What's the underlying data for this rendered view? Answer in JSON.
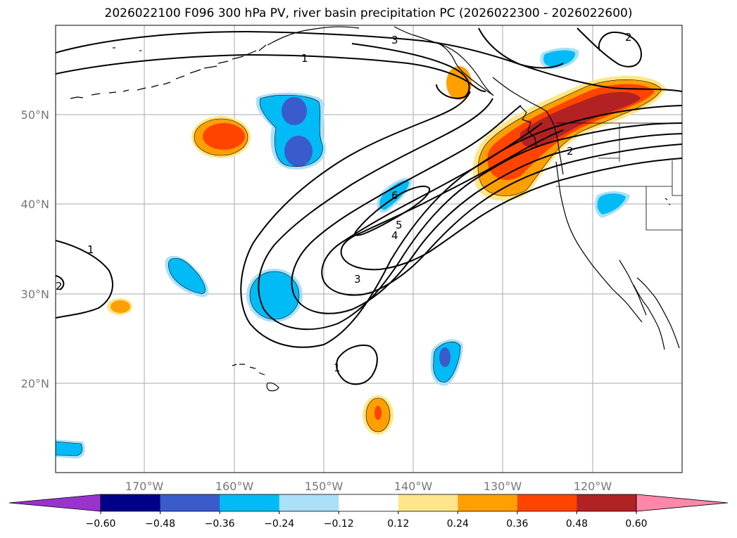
{
  "title": "2026022100 F096 300 hPa PV, river basin precipitation PC (2026022300 - 2026022600)",
  "map": {
    "lat_labels": [
      "50°N",
      "40°N",
      "30°N",
      "20°N"
    ],
    "lon_labels": [
      "170°W",
      "160°W",
      "150°W",
      "140°W",
      "130°W",
      "120°W"
    ],
    "contour_labels": [
      "3",
      "1",
      "2",
      "6",
      "5",
      "4",
      "3",
      "1",
      "2",
      "1",
      "2"
    ],
    "pv_contour_levels": [
      1,
      2,
      3,
      4,
      5,
      6
    ],
    "contour_color": "#000000",
    "grid_color": "#aaaaaa",
    "coast_color": "#000000"
  },
  "colorbar": {
    "ticks": [
      "−0.60",
      "−0.48",
      "−0.36",
      "−0.24",
      "−0.12",
      "0.12",
      "0.24",
      "0.36",
      "0.48",
      "0.60"
    ],
    "colors": [
      "#9933cc",
      "#000088",
      "#3a5bcc",
      "#00bbf5",
      "#aae0fa",
      "#ffffff",
      "#ffe68a",
      "#ffa000",
      "#ff4400",
      "#b22222",
      "#ff88aa"
    ],
    "extend": "both"
  }
}
